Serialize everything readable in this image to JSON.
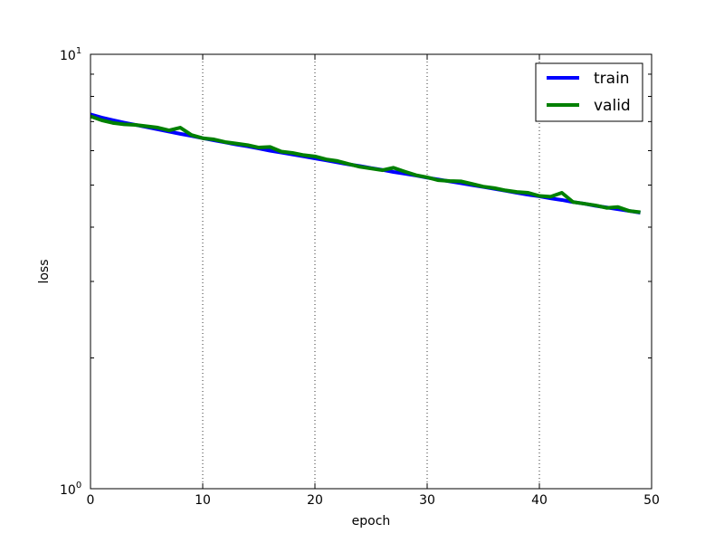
{
  "chart_data": {
    "type": "line",
    "xlabel": "epoch",
    "ylabel": "loss",
    "xlim": [
      0,
      50
    ],
    "ylim": [
      1,
      10
    ],
    "yscale": "log",
    "x_ticks": [
      "0",
      "10",
      "20",
      "30",
      "40",
      "50"
    ],
    "y_tick_labels": {
      "base": "10",
      "exponents": [
        "0",
        "1"
      ]
    },
    "grid": "vertical dotted at x ticks",
    "legend_position": "top-right",
    "x": [
      0,
      1,
      2,
      3,
      4,
      5,
      6,
      7,
      8,
      9,
      10,
      11,
      12,
      13,
      14,
      15,
      16,
      17,
      18,
      19,
      20,
      21,
      22,
      23,
      24,
      25,
      26,
      27,
      28,
      29,
      30,
      31,
      32,
      33,
      34,
      35,
      36,
      37,
      38,
      39,
      40,
      41,
      42,
      43,
      44,
      45,
      46,
      47,
      48,
      49
    ],
    "series": [
      {
        "name": "train",
        "color": "#0000ff",
        "values": [
          7.27,
          7.15,
          7.05,
          6.96,
          6.88,
          6.8,
          6.72,
          6.64,
          6.56,
          6.49,
          6.41,
          6.34,
          6.27,
          6.2,
          6.14,
          6.07,
          6.0,
          5.94,
          5.88,
          5.82,
          5.76,
          5.7,
          5.64,
          5.58,
          5.53,
          5.47,
          5.42,
          5.36,
          5.31,
          5.26,
          5.2,
          5.15,
          5.1,
          5.05,
          5.0,
          4.95,
          4.9,
          4.85,
          4.8,
          4.75,
          4.71,
          4.66,
          4.62,
          4.57,
          4.53,
          4.48,
          4.44,
          4.4,
          4.36,
          4.32
        ]
      },
      {
        "name": "valid",
        "color": "#008000",
        "values": [
          7.2,
          7.05,
          6.95,
          6.9,
          6.88,
          6.83,
          6.78,
          6.68,
          6.78,
          6.52,
          6.41,
          6.37,
          6.28,
          6.23,
          6.18,
          6.1,
          6.12,
          5.97,
          5.93,
          5.86,
          5.82,
          5.73,
          5.68,
          5.59,
          5.51,
          5.46,
          5.41,
          5.48,
          5.37,
          5.27,
          5.21,
          5.13,
          5.11,
          5.1,
          5.03,
          4.96,
          4.92,
          4.86,
          4.82,
          4.8,
          4.72,
          4.7,
          4.8,
          4.57,
          4.53,
          4.49,
          4.43,
          4.45,
          4.36,
          4.33
        ]
      }
    ]
  }
}
